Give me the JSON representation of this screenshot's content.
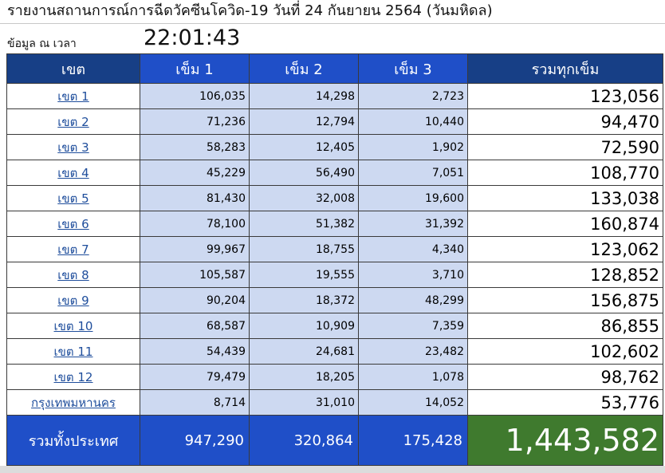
{
  "header": {
    "title": "รายงานสถานการณ์การฉีดวัคซีนโควิด-19   วันที่  24 กันยายน 2564  (วันมหิดล)",
    "time_label": "ข้อมูล ณ เวลา",
    "time_value": "22:01:43"
  },
  "table": {
    "columns": [
      "เขต",
      "เข็ม 1",
      "เข็ม 2",
      "เข็ม 3",
      "รวมทุกเข็ม"
    ],
    "rows": [
      {
        "zone": "เขต 1",
        "dose1": "106,035",
        "dose2": "14,298",
        "dose3": "2,723",
        "total": "123,056"
      },
      {
        "zone": "เขต 2",
        "dose1": "71,236",
        "dose2": "12,794",
        "dose3": "10,440",
        "total": "94,470"
      },
      {
        "zone": "เขต 3",
        "dose1": "58,283",
        "dose2": "12,405",
        "dose3": "1,902",
        "total": "72,590"
      },
      {
        "zone": "เขต 4",
        "dose1": "45,229",
        "dose2": "56,490",
        "dose3": "7,051",
        "total": "108,770"
      },
      {
        "zone": "เขต 5",
        "dose1": "81,430",
        "dose2": "32,008",
        "dose3": "19,600",
        "total": "133,038"
      },
      {
        "zone": "เขต 6",
        "dose1": "78,100",
        "dose2": "51,382",
        "dose3": "31,392",
        "total": "160,874"
      },
      {
        "zone": "เขต 7",
        "dose1": "99,967",
        "dose2": "18,755",
        "dose3": "4,340",
        "total": "123,062"
      },
      {
        "zone": "เขต 8",
        "dose1": "105,587",
        "dose2": "19,555",
        "dose3": "3,710",
        "total": "128,852"
      },
      {
        "zone": "เขต 9",
        "dose1": "90,204",
        "dose2": "18,372",
        "dose3": "48,299",
        "total": "156,875"
      },
      {
        "zone": "เขต 10",
        "dose1": "68,587",
        "dose2": "10,909",
        "dose3": "7,359",
        "total": "86,855"
      },
      {
        "zone": "เขต 11",
        "dose1": "54,439",
        "dose2": "24,681",
        "dose3": "23,482",
        "total": "102,602"
      },
      {
        "zone": "เขต 12",
        "dose1": "79,479",
        "dose2": "18,205",
        "dose3": "1,078",
        "total": "98,762"
      },
      {
        "zone": "กรุงเทพมหานคร",
        "dose1": "8,714",
        "dose2": "31,010",
        "dose3": "14,052",
        "total": "53,776"
      }
    ],
    "footer": {
      "label": "รวมทั้งประเทศ",
      "dose1": "947,290",
      "dose2": "320,864",
      "dose3": "175,428",
      "total": "1,443,582"
    }
  },
  "colors": {
    "header_dark": "#173f86",
    "header_blue": "#1f4fc8",
    "cell_light_blue": "#cdd9f1",
    "grand_total_green": "#3f7a2e",
    "link_blue": "#1f4e9c"
  }
}
